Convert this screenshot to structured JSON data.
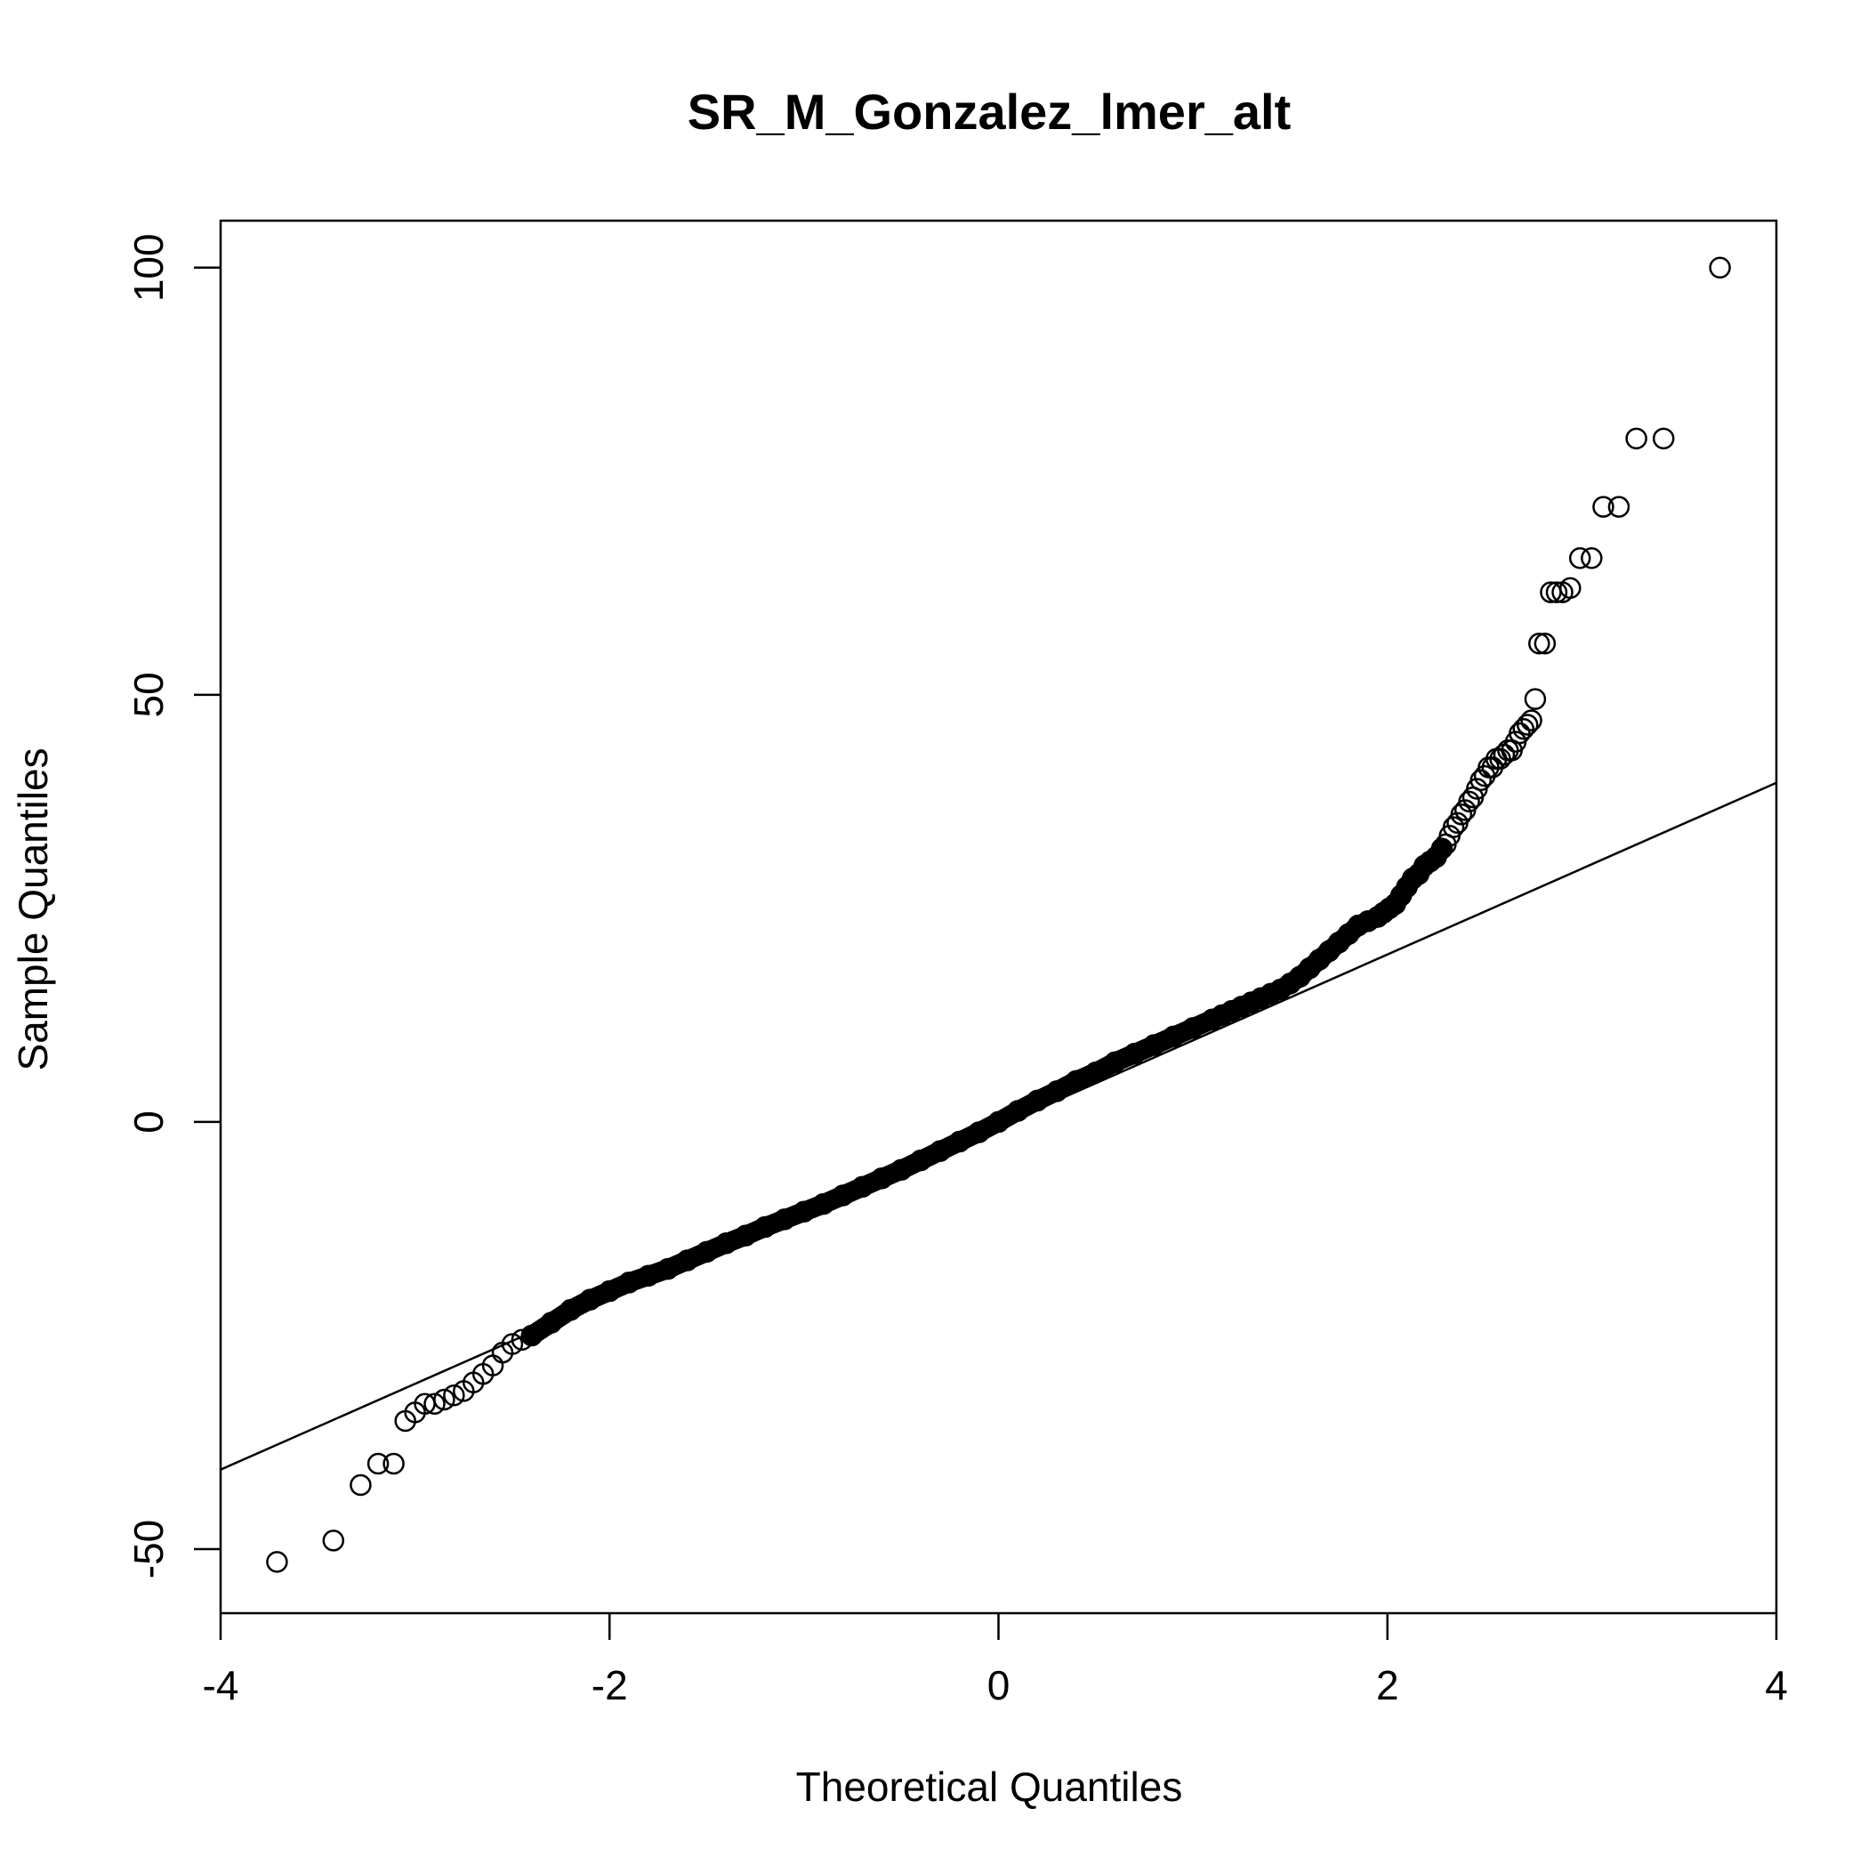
{
  "chart_data": {
    "type": "scatter",
    "title": "SR_M_Gonzalez_lmer_alt",
    "xlabel": "Theoretical Quantiles",
    "ylabel": "Sample Quantiles",
    "xlim": [
      -4,
      4
    ],
    "ylim": [
      -57.5,
      105.5
    ],
    "x_ticks": [
      -4,
      -2,
      0,
      2,
      4
    ],
    "x_tick_labels": [
      "-4",
      "-2",
      "0",
      "2",
      "4"
    ],
    "y_ticks": [
      -50,
      0,
      50,
      100
    ],
    "y_tick_labels": [
      "-50",
      "0",
      "50",
      "100"
    ],
    "grid": false,
    "legend": "none",
    "marker": "open-circle",
    "colors": {
      "points": "#000000",
      "line": "#000000",
      "axes": "#000000",
      "background": "#ffffff"
    },
    "reference_line": {
      "type": "qqline",
      "points": [
        [
          -4,
          -40.7
        ],
        [
          4,
          39.7
        ]
      ]
    },
    "points": [
      [
        3.71,
        100
      ],
      [
        3.42,
        80
      ],
      [
        3.28,
        80
      ],
      [
        3.19,
        72
      ],
      [
        3.11,
        72
      ],
      [
        3.05,
        66
      ],
      [
        2.99,
        66
      ],
      [
        2.94,
        62.5
      ],
      [
        2.9,
        62
      ],
      [
        2.87,
        62
      ],
      [
        2.84,
        62
      ],
      [
        2.81,
        56
      ],
      [
        2.78,
        56
      ],
      [
        2.76,
        49.5
      ],
      [
        2.74,
        47
      ],
      [
        2.72,
        46.5
      ],
      [
        2.7,
        46
      ],
      [
        2.68,
        45.5
      ],
      [
        2.66,
        44.5
      ],
      [
        2.64,
        43.5
      ],
      [
        2.62,
        43.5
      ],
      [
        2.6,
        43
      ],
      [
        2.58,
        42.5
      ],
      [
        2.56,
        42.5
      ],
      [
        2.54,
        41.5
      ],
      [
        2.52,
        41.5
      ],
      [
        2.5,
        40.5
      ],
      [
        2.48,
        40
      ],
      [
        2.46,
        39
      ],
      [
        2.44,
        38
      ],
      [
        2.42,
        37.5
      ],
      [
        2.4,
        36.5
      ],
      [
        2.38,
        36
      ],
      [
        2.36,
        35
      ],
      [
        2.34,
        34.5
      ],
      [
        2.32,
        33.5
      ],
      [
        2.3,
        32.5
      ],
      [
        2.28,
        32
      ],
      [
        2.25,
        31
      ],
      [
        2.22,
        30.5
      ],
      [
        2.19,
        30
      ],
      [
        2.16,
        29
      ],
      [
        2.13,
        28.5
      ],
      [
        2.1,
        27.5
      ],
      [
        2.07,
        26.5
      ],
      [
        2.04,
        25.5
      ],
      [
        2.01,
        25
      ],
      [
        1.98,
        24.5
      ],
      [
        1.95,
        24
      ],
      [
        1.9,
        23.5
      ],
      [
        1.85,
        23
      ],
      [
        1.8,
        22
      ],
      [
        1.75,
        21
      ],
      [
        1.7,
        20
      ],
      [
        1.65,
        19
      ],
      [
        1.6,
        18
      ],
      [
        1.55,
        17
      ],
      [
        1.5,
        16.2
      ],
      [
        1.45,
        15.5
      ],
      [
        1.4,
        15
      ],
      [
        1.35,
        14.5
      ],
      [
        1.3,
        14
      ],
      [
        1.25,
        13.5
      ],
      [
        1.2,
        13
      ],
      [
        1.15,
        12.5
      ],
      [
        1.1,
        12
      ],
      [
        1.0,
        11
      ],
      [
        0.9,
        10
      ],
      [
        0.8,
        9
      ],
      [
        0.7,
        8
      ],
      [
        0.6,
        7
      ],
      [
        0.5,
        5.8
      ],
      [
        0.4,
        4.8
      ],
      [
        0.3,
        3.6
      ],
      [
        0.2,
        2.5
      ],
      [
        0.1,
        1.3
      ],
      [
        0.0,
        0
      ],
      [
        -0.1,
        -1.2
      ],
      [
        -0.2,
        -2.3
      ],
      [
        -0.3,
        -3.4
      ],
      [
        -0.4,
        -4.5
      ],
      [
        -0.5,
        -5.6
      ],
      [
        -0.6,
        -6.6
      ],
      [
        -0.7,
        -7.6
      ],
      [
        -0.8,
        -8.6
      ],
      [
        -0.9,
        -9.6
      ],
      [
        -1.0,
        -10.5
      ],
      [
        -1.1,
        -11.4
      ],
      [
        -1.2,
        -12.3
      ],
      [
        -1.3,
        -13.3
      ],
      [
        -1.4,
        -14.2
      ],
      [
        -1.5,
        -15.2
      ],
      [
        -1.6,
        -16.2
      ],
      [
        -1.7,
        -17.2
      ],
      [
        -1.8,
        -18
      ],
      [
        -1.9,
        -18.8
      ],
      [
        -2.0,
        -19.8
      ],
      [
        -2.1,
        -20.8
      ],
      [
        -2.2,
        -22
      ],
      [
        -2.3,
        -23.5
      ],
      [
        -2.4,
        -25
      ],
      [
        -2.45,
        -25.5
      ],
      [
        -2.5,
        -26
      ],
      [
        -2.55,
        -27
      ],
      [
        -2.6,
        -28.5
      ],
      [
        -2.65,
        -29.5
      ],
      [
        -2.7,
        -30.5
      ],
      [
        -2.75,
        -31.5
      ],
      [
        -2.8,
        -32
      ],
      [
        -2.85,
        -32.5
      ],
      [
        -2.9,
        -33
      ],
      [
        -2.95,
        -33
      ],
      [
        -3.0,
        -34
      ],
      [
        -3.05,
        -35
      ],
      [
        -3.11,
        -40
      ],
      [
        -3.19,
        -40
      ],
      [
        -3.28,
        -42.5
      ],
      [
        -3.42,
        -49
      ],
      [
        -3.71,
        -51.5
      ]
    ]
  }
}
